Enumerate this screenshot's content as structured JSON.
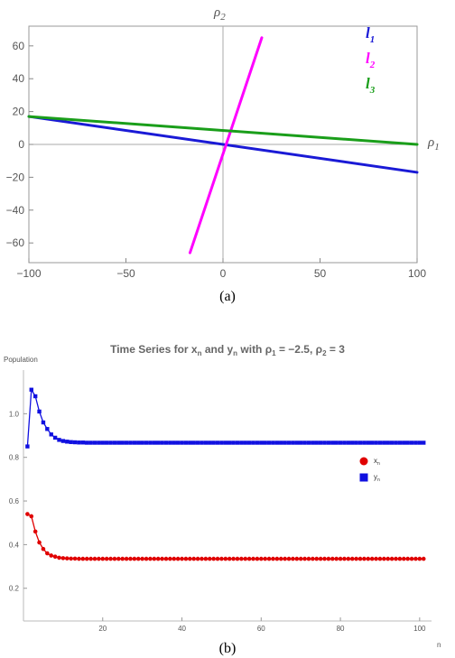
{
  "chart_data": [
    {
      "type": "line",
      "caption": "(a)",
      "xlabel": "ρ1",
      "ylabel": "ρ2",
      "xlim": [
        -100,
        100
      ],
      "ylim": [
        -72,
        72
      ],
      "x_ticks": [
        -100,
        -50,
        0,
        50,
        100
      ],
      "y_ticks": [
        -60,
        -40,
        -20,
        0,
        20,
        40,
        60
      ],
      "x_tick_labels": [
        "−100",
        "−50",
        "0",
        "50",
        "100"
      ],
      "y_tick_labels": [
        "−60",
        "−40",
        "−20",
        "0",
        "20",
        "40",
        "60"
      ],
      "grid": false,
      "legend_position": "top-right",
      "series": [
        {
          "name": "l1",
          "color": "#1a1ad6",
          "points": [
            [
              -100,
              17
            ],
            [
              100,
              -17
            ]
          ]
        },
        {
          "name": "l2",
          "color": "#ff00ff",
          "points": [
            [
              -17,
              -66
            ],
            [
              20,
              65
            ]
          ]
        },
        {
          "name": "l3",
          "color": "#1a9e1a",
          "points": [
            [
              -100,
              17
            ],
            [
              100,
              0
            ]
          ]
        }
      ]
    },
    {
      "type": "scatter",
      "caption": "(b)",
      "title": "Time Series for xn and yn with ρ1 = −2.5, ρ2 = 3",
      "title_parts": [
        "Time Series for x",
        "n",
        " and y",
        "n",
        " with ρ",
        "1",
        " = −2.5, ρ",
        "2",
        " = 3"
      ],
      "xlabel": "n",
      "ylabel": "Population",
      "xlim": [
        0,
        103
      ],
      "ylim": [
        0.05,
        1.2
      ],
      "x_ticks": [
        20,
        40,
        60,
        80,
        100
      ],
      "y_ticks": [
        0.2,
        0.4,
        0.6,
        0.8,
        1.0
      ],
      "x_tick_labels": [
        "20",
        "40",
        "60",
        "80",
        "100"
      ],
      "y_tick_labels": [
        "0.2",
        "0.4",
        "0.6",
        "0.8",
        "1.0"
      ],
      "legend_position": "right",
      "series": [
        {
          "name": "x",
          "subscript": "n",
          "color": "#e00000",
          "marker": "circle",
          "x_start": 1,
          "values": [
            0.54,
            0.53,
            0.46,
            0.41,
            0.38,
            0.36,
            0.35,
            0.345,
            0.34,
            0.338,
            0.337,
            0.336,
            0.336,
            0.335,
            0.335,
            0.335,
            0.335,
            0.335,
            0.335,
            0.335,
            0.335,
            0.335,
            0.335,
            0.335,
            0.335,
            0.335,
            0.335,
            0.335,
            0.335,
            0.335,
            0.335,
            0.335,
            0.335,
            0.335,
            0.335,
            0.335,
            0.335,
            0.335,
            0.335,
            0.335,
            0.335,
            0.335,
            0.335,
            0.335,
            0.335,
            0.335,
            0.335,
            0.335,
            0.335,
            0.335,
            0.335,
            0.335,
            0.335,
            0.335,
            0.335,
            0.335,
            0.335,
            0.335,
            0.335,
            0.335,
            0.335,
            0.335,
            0.335,
            0.335,
            0.335,
            0.335,
            0.335,
            0.335,
            0.335,
            0.335,
            0.335,
            0.335,
            0.335,
            0.335,
            0.335,
            0.335,
            0.335,
            0.335,
            0.335,
            0.335,
            0.335,
            0.335,
            0.335,
            0.335,
            0.335,
            0.335,
            0.335,
            0.335,
            0.335,
            0.335,
            0.335,
            0.335,
            0.335,
            0.335,
            0.335,
            0.335,
            0.335,
            0.335,
            0.335,
            0.335,
            0.335
          ]
        },
        {
          "name": "y",
          "subscript": "n",
          "color": "#1010e0",
          "marker": "square",
          "x_start": 1,
          "values": [
            0.85,
            1.11,
            1.08,
            1.01,
            0.96,
            0.93,
            0.905,
            0.89,
            0.88,
            0.875,
            0.872,
            0.87,
            0.869,
            0.868,
            0.868,
            0.867,
            0.867,
            0.867,
            0.867,
            0.867,
            0.867,
            0.867,
            0.867,
            0.867,
            0.867,
            0.867,
            0.867,
            0.867,
            0.867,
            0.867,
            0.867,
            0.867,
            0.867,
            0.867,
            0.867,
            0.867,
            0.867,
            0.867,
            0.867,
            0.867,
            0.867,
            0.867,
            0.867,
            0.867,
            0.867,
            0.867,
            0.867,
            0.867,
            0.867,
            0.867,
            0.867,
            0.867,
            0.867,
            0.867,
            0.867,
            0.867,
            0.867,
            0.867,
            0.867,
            0.867,
            0.867,
            0.867,
            0.867,
            0.867,
            0.867,
            0.867,
            0.867,
            0.867,
            0.867,
            0.867,
            0.867,
            0.867,
            0.867,
            0.867,
            0.867,
            0.867,
            0.867,
            0.867,
            0.867,
            0.867,
            0.867,
            0.867,
            0.867,
            0.867,
            0.867,
            0.867,
            0.867,
            0.867,
            0.867,
            0.867,
            0.867,
            0.867,
            0.867,
            0.867,
            0.867,
            0.867,
            0.867,
            0.867,
            0.867,
            0.867,
            0.867
          ]
        }
      ]
    }
  ]
}
